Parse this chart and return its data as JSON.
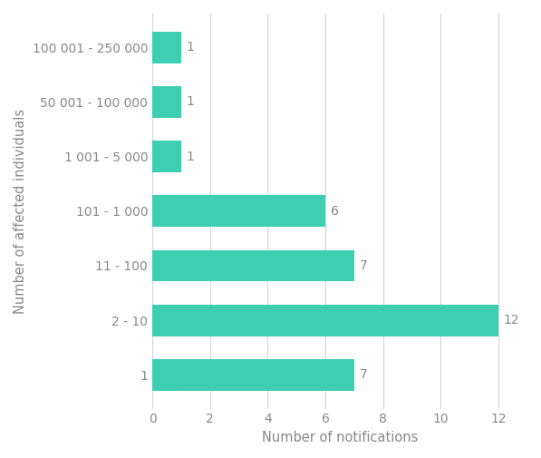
{
  "categories": [
    "1",
    "2 - 10",
    "11 - 100",
    "101 - 1 000",
    "1 001 - 5 000",
    "50 001 - 100 000",
    "100 001 - 250 000"
  ],
  "values": [
    7,
    12,
    7,
    6,
    1,
    1,
    1
  ],
  "bar_color": "#3ECFB2",
  "xlabel": "Number of notifications",
  "ylabel": "Number of affected individuals",
  "xlim": [
    0,
    13
  ],
  "xticks": [
    0,
    2,
    4,
    6,
    8,
    10,
    12
  ],
  "background_color": "#ffffff",
  "grid_color": "#d8d8d8",
  "label_fontsize": 10.5,
  "tick_fontsize": 10,
  "value_label_fontsize": 10,
  "value_label_color": "#888888",
  "bar_height": 0.58
}
